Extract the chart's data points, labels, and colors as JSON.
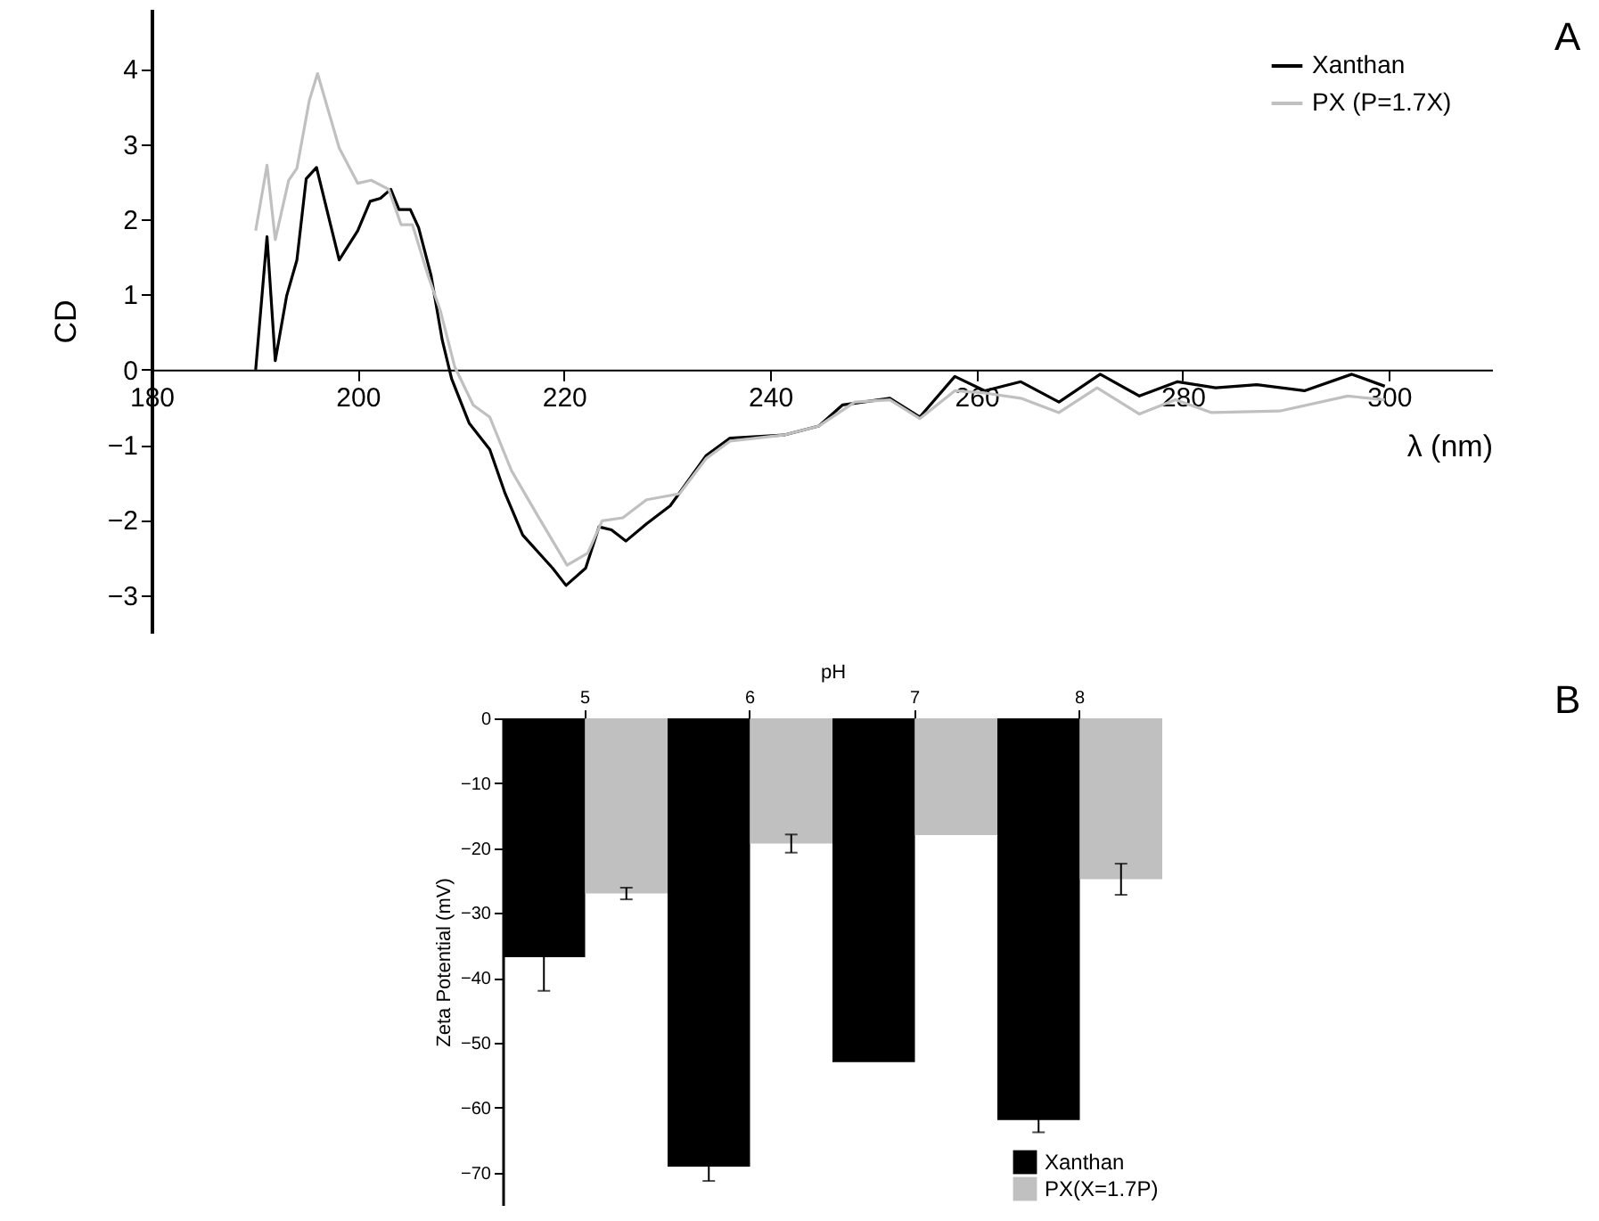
{
  "chart_data": [
    {
      "type": "line",
      "xlabel": "λ (nm)",
      "ylabel": "CD",
      "annotations": [
        "A"
      ],
      "xlim": [
        180,
        310
      ],
      "ylim": [
        -3.5,
        4.8
      ],
      "xticks": [
        180,
        200,
        220,
        240,
        260,
        280,
        300
      ],
      "yticks": [
        -3,
        -2,
        -1,
        0,
        1,
        2,
        3,
        4
      ],
      "legend": "top right",
      "grid": false,
      "series": [
        {
          "name": "Xanthan",
          "color": "#000000",
          "x": [
            190.1,
            191.2,
            192.0,
            193.1,
            194.1,
            195.0,
            196.0,
            198.2,
            200.0,
            201.2,
            202.2,
            203.2,
            204.0,
            205.1,
            205.9,
            207.1,
            208.2,
            209.1,
            210.8,
            212.8,
            214.3,
            216.0,
            218.9,
            220.2,
            222.1,
            223.4,
            224.6,
            226.0,
            228.0,
            230.3,
            233.8,
            236.1,
            241.3,
            244.7,
            247.0,
            251.6,
            254.5,
            257.9,
            260.8,
            264.3,
            268.0,
            272.0,
            275.8,
            279.5,
            283.2,
            287.2,
            291.8,
            296.4,
            299.6
          ],
          "values": [
            0,
            1.77,
            0.12,
            0.98,
            1.46,
            2.54,
            2.69,
            1.46,
            1.85,
            2.24,
            2.28,
            2.4,
            2.13,
            2.13,
            1.89,
            1.26,
            0.39,
            -0.12,
            -0.71,
            -1.06,
            -1.65,
            -2.2,
            -2.64,
            -2.87,
            -2.64,
            -2.09,
            -2.13,
            -2.28,
            -2.05,
            -1.81,
            -1.14,
            -0.91,
            -0.87,
            -0.75,
            -0.47,
            -0.38,
            -0.63,
            -0.09,
            -0.28,
            -0.16,
            -0.43,
            -0.06,
            -0.35,
            -0.16,
            -0.24,
            -0.2,
            -0.28,
            -0.06,
            -0.22
          ]
        },
        {
          "name": "PX (P=1.7X)",
          "color": "#c0c0c0",
          "x": [
            190.1,
            191.2,
            192.0,
            193.3,
            194.1,
            195.3,
            196.1,
            198.2,
            200.0,
            201.3,
            203.0,
            204.2,
            205.3,
            206.8,
            208.0,
            209.4,
            211.2,
            212.8,
            214.9,
            217.4,
            220.3,
            222.3,
            223.7,
            225.7,
            228.0,
            231.2,
            233.8,
            236.1,
            241.3,
            244.7,
            248.2,
            251.6,
            254.5,
            257.9,
            260.8,
            264.3,
            268.0,
            271.7,
            275.8,
            279.3,
            282.8,
            289.4,
            296.0,
            299.6
          ],
          "values": [
            1.85,
            2.72,
            1.73,
            2.52,
            2.68,
            3.58,
            3.94,
            2.95,
            2.48,
            2.52,
            2.4,
            1.93,
            1.93,
            1.26,
            0.79,
            0.04,
            -0.47,
            -0.63,
            -1.34,
            -1.93,
            -2.6,
            -2.44,
            -2.01,
            -1.97,
            -1.73,
            -1.65,
            -1.18,
            -0.95,
            -0.87,
            -0.75,
            -0.43,
            -0.4,
            -0.65,
            -0.28,
            -0.31,
            -0.38,
            -0.57,
            -0.24,
            -0.59,
            -0.4,
            -0.57,
            -0.55,
            -0.35,
            -0.4
          ]
        }
      ]
    },
    {
      "type": "bar",
      "xlabel": "pH",
      "ylabel": "Zeta Potential (mV)",
      "annotations": [
        "B"
      ],
      "categories": [
        "5",
        "6",
        "7",
        "8"
      ],
      "ylim": [
        -75,
        0
      ],
      "yticks": [
        -70,
        -60,
        -50,
        -40,
        -30,
        -20,
        -10,
        0
      ],
      "legend": "bottom right",
      "grid": false,
      "series": [
        {
          "name": "Xanthan",
          "color": "#000000",
          "values": [
            -36.8,
            -69.1,
            -53.0,
            -61.9
          ],
          "errors": [
            5.2,
            2.2,
            null,
            1.9
          ]
        },
        {
          "name": "PX(X=1.7P)",
          "color": "#c0c0c0",
          "values": [
            -27.0,
            -19.3,
            -18.0,
            -24.8
          ],
          "errors": [
            0.9,
            1.4,
            null,
            2.4
          ]
        }
      ]
    }
  ]
}
